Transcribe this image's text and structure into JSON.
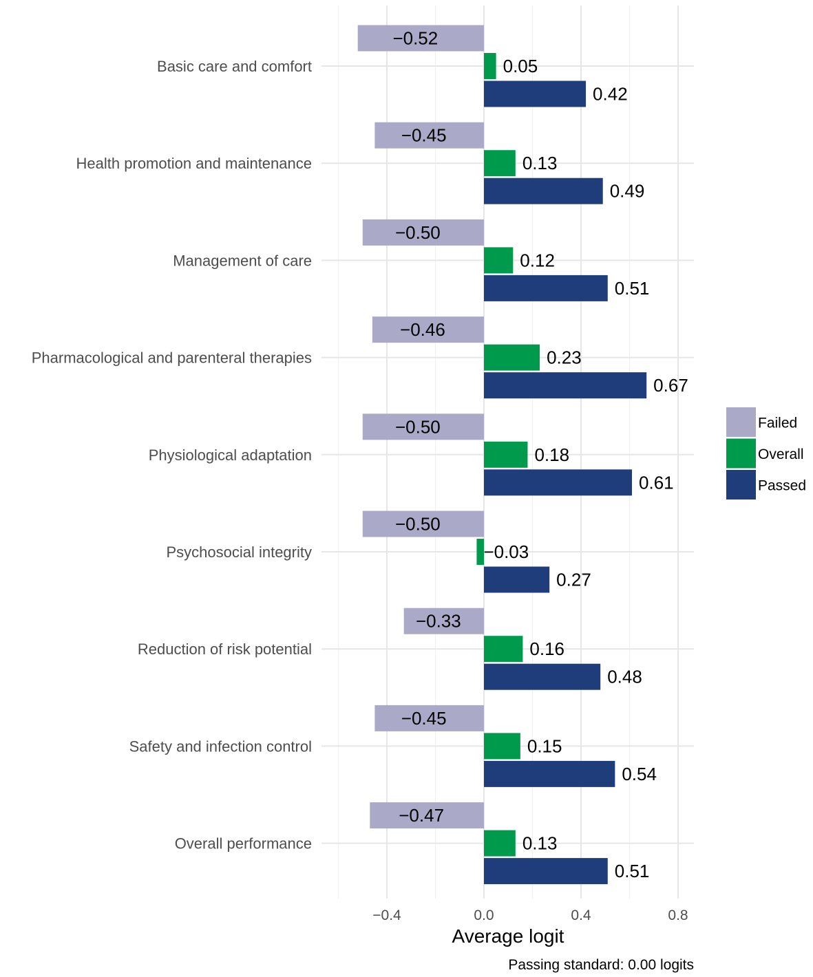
{
  "chart_data": {
    "type": "bar",
    "orientation": "horizontal",
    "categories": [
      "Basic care and comfort",
      "Health promotion and maintenance",
      "Management of care",
      "Pharmacological and parenteral therapies",
      "Physiological adaptation",
      "Psychosocial integrity",
      "Reduction of risk potential",
      "Safety and infection control",
      "Overall performance"
    ],
    "series": [
      {
        "name": "Failed",
        "color": "#aaaac8",
        "values": [
          -0.52,
          -0.45,
          -0.5,
          -0.46,
          -0.5,
          -0.5,
          -0.33,
          -0.45,
          -0.47
        ],
        "labels": [
          "−0.52",
          "−0.45",
          "−0.50",
          "−0.46",
          "−0.50",
          "−0.50",
          "−0.33",
          "−0.45",
          "−0.47"
        ]
      },
      {
        "name": "Overall",
        "color": "#009a4c",
        "values": [
          0.05,
          0.13,
          0.12,
          0.23,
          0.18,
          -0.03,
          0.16,
          0.15,
          0.13
        ],
        "labels": [
          "0.05",
          "0.13",
          "0.12",
          "0.23",
          "0.18",
          "−0.03",
          "0.16",
          "0.15",
          "0.13"
        ]
      },
      {
        "name": "Passed",
        "color": "#1f3d7a",
        "values": [
          0.42,
          0.49,
          0.51,
          0.67,
          0.61,
          0.27,
          0.48,
          0.54,
          0.51
        ],
        "labels": [
          "0.42",
          "0.49",
          "0.51",
          "0.67",
          "0.61",
          "0.27",
          "0.48",
          "0.54",
          "0.51"
        ]
      }
    ],
    "xlabel": "Average logit",
    "xlim": [
      -0.6,
      0.87
    ],
    "xticks": [
      -0.4,
      0.0,
      0.4,
      0.8
    ],
    "xtick_labels": [
      "−0.4",
      "0.0",
      "0.4",
      "0.8"
    ],
    "caption": "Passing standard: 0.00 logits",
    "grid": true,
    "legend": "right"
  }
}
